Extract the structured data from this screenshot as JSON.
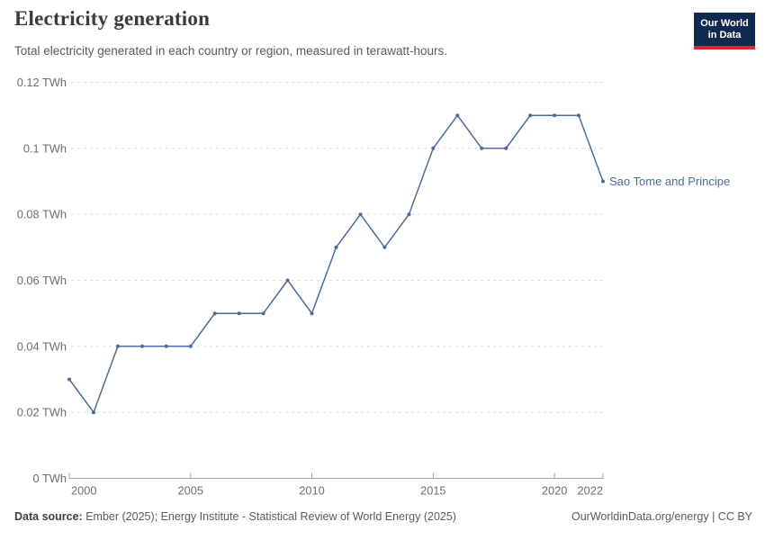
{
  "header": {
    "title": "Electricity generation",
    "subtitle": "Total electricity generated in each country or region, measured in terawatt-hours."
  },
  "logo": {
    "line1": "Our World",
    "line2": "in Data",
    "bg_color": "#0f2a4e",
    "accent_color": "#d12b30"
  },
  "chart_data": {
    "type": "line",
    "title": "Electricity generation",
    "unit": "TWh",
    "x": [
      2000,
      2001,
      2002,
      2003,
      2004,
      2005,
      2006,
      2007,
      2008,
      2009,
      2010,
      2011,
      2012,
      2013,
      2014,
      2015,
      2016,
      2017,
      2018,
      2019,
      2020,
      2021,
      2022
    ],
    "series": [
      {
        "name": "Sao Tome and Principe",
        "color": "#4c6a9c",
        "values": [
          0.03,
          0.02,
          0.04,
          0.04,
          0.04,
          0.04,
          0.05,
          0.05,
          0.05,
          0.06,
          0.05,
          0.07,
          0.08,
          0.07,
          0.08,
          0.1,
          0.11,
          0.1,
          0.1,
          0.11,
          0.11,
          0.11,
          0.09
        ]
      }
    ],
    "ylim": [
      0,
      0.12
    ],
    "y_ticks": [
      0,
      0.02,
      0.04,
      0.06,
      0.08,
      0.1,
      0.12
    ],
    "y_tick_labels": [
      "0 TWh",
      "0.02 TWh",
      "0.04 TWh",
      "0.06 TWh",
      "0.08 TWh",
      "0.1 TWh",
      "0.12 TWh"
    ],
    "x_ticks": [
      2000,
      2005,
      2010,
      2015,
      2020,
      2022
    ],
    "grid": "horizontal dashed",
    "legend_position": "end-of-line label",
    "colors": {
      "gridline": "#dcdcdc",
      "axis_line": "#a1a1a1",
      "tick_text": "#6e6e6e"
    }
  },
  "footer": {
    "source_label": "Data source:",
    "source_text": " Ember (2025); Energy Institute - Statistical Review of World Energy (2025)",
    "right_text": "OurWorldinData.org/energy | CC BY"
  }
}
